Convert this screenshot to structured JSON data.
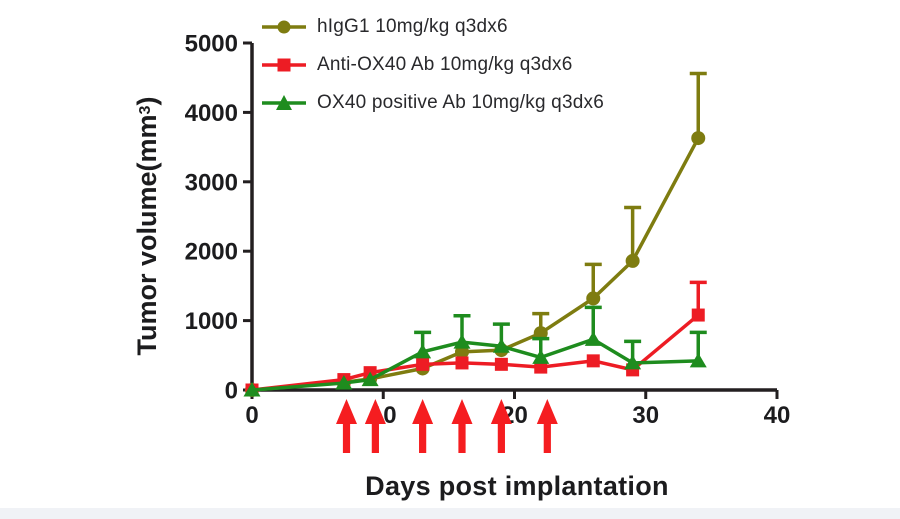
{
  "figure": {
    "background": "#ffffff",
    "footer_strip_color": "#f0f2f6"
  },
  "legend": {
    "items": [
      {
        "label": "hIgG1 10mg/kg q3dx6",
        "color": "#7E7C10",
        "marker": "circle"
      },
      {
        "label": "Anti-OX40 Ab 10mg/kg q3dx6",
        "color": "#ED1C24",
        "marker": "square"
      },
      {
        "label": "OX40 positive Ab 10mg/kg q3dx6",
        "color": "#1E8C1E",
        "marker": "triangle"
      }
    ]
  },
  "axes": {
    "x_label": "Days post implantation",
    "y_label_prefix": "Tumor volume(mm",
    "y_label_sup": "3",
    "y_label_suffix": ")",
    "axis_color": "#231F20"
  },
  "chart_data": {
    "type": "line",
    "title": "",
    "xlabel": "Days post implantation",
    "ylabel": "Tumor volume(mm3)",
    "xlim": [
      0,
      40
    ],
    "ylim": [
      0,
      5000
    ],
    "x_ticks": [
      0,
      10,
      20,
      30,
      40
    ],
    "y_ticks": [
      0,
      1000,
      2000,
      3000,
      4000,
      5000
    ],
    "grid": false,
    "legend_position": "top-left-inside",
    "x": [
      0,
      7,
      9,
      13,
      16,
      19,
      22,
      26,
      29,
      34
    ],
    "series": [
      {
        "name": "hIgG1 10mg/kg q3dx6",
        "marker": "circle",
        "color": "#7E7C10",
        "values": [
          0,
          110,
          160,
          310,
          550,
          575,
          820,
          1320,
          1860,
          3630
        ],
        "upper_error": [
          null,
          null,
          null,
          null,
          null,
          null,
          280,
          490,
          770,
          930
        ]
      },
      {
        "name": "Anti-OX40 Ab 10mg/kg q3dx6",
        "marker": "square",
        "color": "#ED1C24",
        "values": [
          0,
          150,
          250,
          370,
          390,
          370,
          330,
          420,
          290,
          1080
        ],
        "upper_error": [
          null,
          null,
          null,
          null,
          null,
          null,
          null,
          null,
          null,
          470
        ]
      },
      {
        "name": "OX40 positive Ab 10mg/kg q3dx6",
        "marker": "triangle",
        "color": "#1E8C1E",
        "values": [
          0,
          100,
          150,
          550,
          690,
          630,
          470,
          730,
          390,
          420
        ],
        "upper_error": [
          null,
          null,
          null,
          280,
          380,
          320,
          270,
          460,
          310,
          410
        ]
      }
    ],
    "treatment_arrows": {
      "color": "#F51D20",
      "days": [
        7.2,
        9.4,
        13,
        16,
        19,
        22.5
      ]
    }
  }
}
